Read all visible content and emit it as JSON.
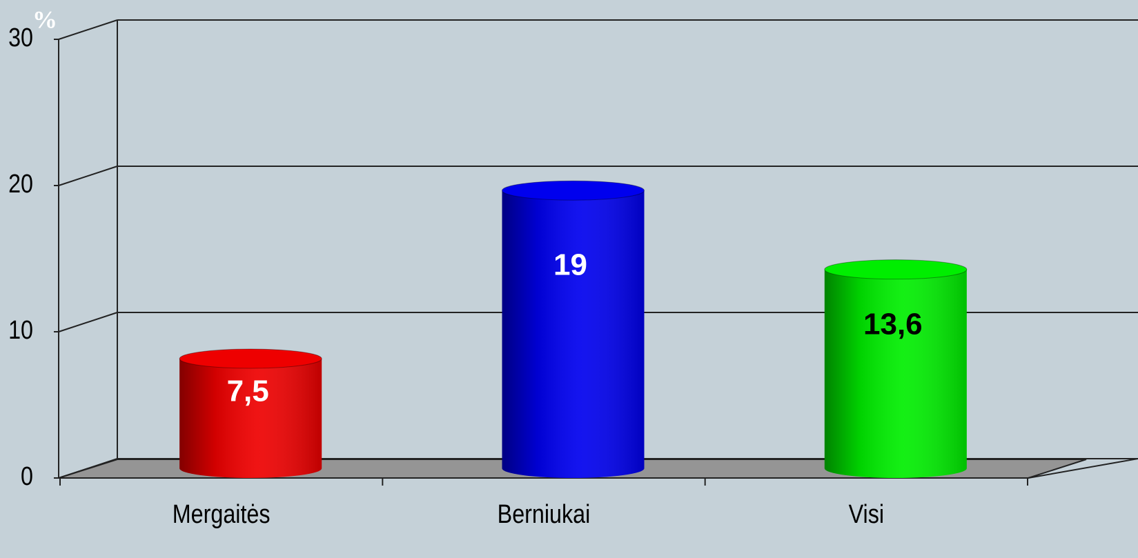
{
  "chart_data": {
    "type": "bar3d",
    "y_label": "%",
    "categories": [
      "Mergaitės",
      "Berniukai",
      "Visi"
    ],
    "values": [
      7.5,
      19,
      13.6
    ],
    "value_labels": [
      "7,5",
      "19",
      "13,6"
    ],
    "colors": [
      "#ee0000",
      "#0000ee",
      "#00ee00"
    ],
    "value_label_colors": [
      "#ffffff",
      "#ffffff",
      "#000000"
    ],
    "ylim": [
      0,
      30
    ],
    "yticks": [
      0,
      10,
      20,
      30
    ],
    "grid": true
  }
}
